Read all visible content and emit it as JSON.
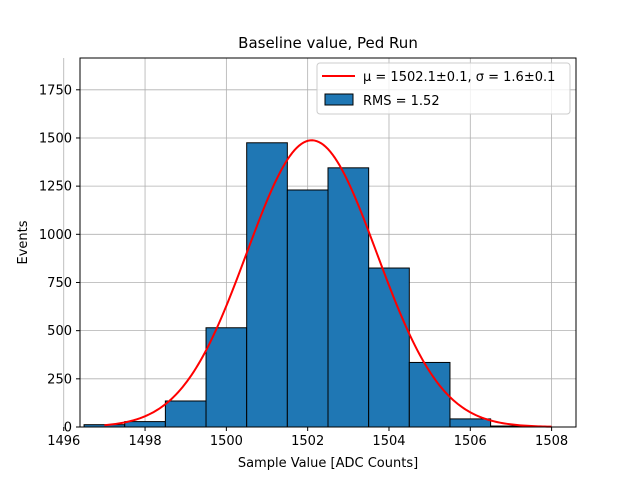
{
  "chart_data": {
    "type": "bar",
    "title": "Baseline value, Ped Run",
    "xlabel": "Sample Value [ADC Counts]",
    "ylabel": "Events",
    "xlim": [
      1496.4,
      1508.6
    ],
    "ylim": [
      0,
      1915
    ],
    "grid": true,
    "legend_position": "top-right",
    "xticks": [
      1496,
      1498,
      1500,
      1502,
      1504,
      1506,
      1508
    ],
    "yticks": [
      0,
      250,
      500,
      750,
      1000,
      1250,
      1500,
      1750
    ],
    "bins": [
      {
        "x0": 1496.5,
        "x1": 1497.5,
        "count": 12
      },
      {
        "x0": 1497.5,
        "x1": 1498.5,
        "count": 28
      },
      {
        "x0": 1498.5,
        "x1": 1499.5,
        "count": 135
      },
      {
        "x0": 1499.5,
        "x1": 1500.5,
        "count": 515
      },
      {
        "x0": 1500.5,
        "x1": 1501.5,
        "count": 1475
      },
      {
        "x0": 1501.5,
        "x1": 1502.5,
        "count": 1230
      },
      {
        "x0": 1502.5,
        "x1": 1503.5,
        "count": 1345
      },
      {
        "x0": 1503.5,
        "x1": 1504.5,
        "count": 825
      },
      {
        "x0": 1504.5,
        "x1": 1505.5,
        "count": 335
      },
      {
        "x0": 1505.5,
        "x1": 1506.5,
        "count": 42
      },
      {
        "x0": 1506.5,
        "x1": 1507.5,
        "count": 5
      }
    ],
    "fit": {
      "type": "gaussian",
      "mu": 1502.1,
      "sigma": 1.6,
      "amplitude": 1488,
      "x_range": [
        1497,
        1508
      ]
    },
    "series": [
      {
        "name": "μ = 1502.1±0.1, σ = 1.6±0.1",
        "kind": "line",
        "color": "#ff0000"
      },
      {
        "name": "RMS = 1.52",
        "kind": "bar",
        "color": "#1f77b4"
      }
    ]
  }
}
